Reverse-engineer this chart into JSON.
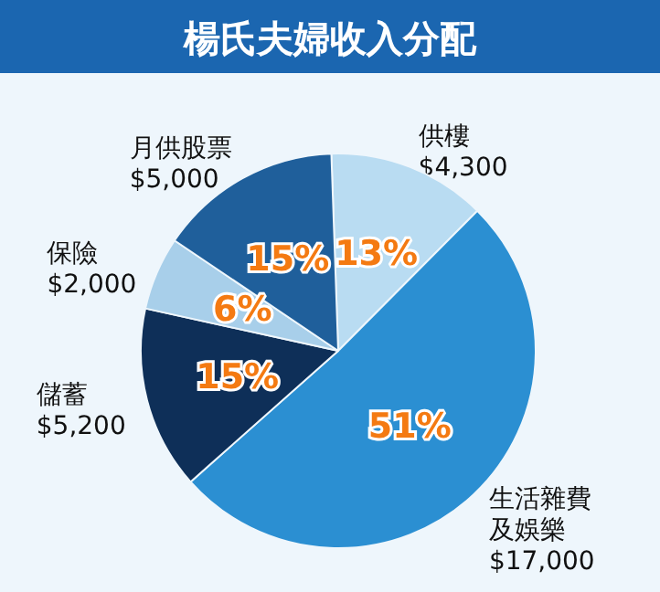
{
  "chart_data": {
    "type": "pie",
    "title": "楊氏夫婦收入分配",
    "categories": [
      "供樓",
      "生活雜費及娛樂",
      "儲蓄",
      "保險",
      "月供股票"
    ],
    "values": [
      13,
      51,
      15,
      6,
      15
    ],
    "value_labels": [
      "13%",
      "51%",
      "15%",
      "6%",
      "15%"
    ],
    "annotations": [
      "$4,300",
      "$17,000",
      "$5,200",
      "$2,000",
      "$5,000"
    ],
    "colors": [
      "#b9dcf2",
      "#2b8fd2",
      "#0e2f58",
      "#a8cfea",
      "#1f5f9b"
    ]
  }
}
